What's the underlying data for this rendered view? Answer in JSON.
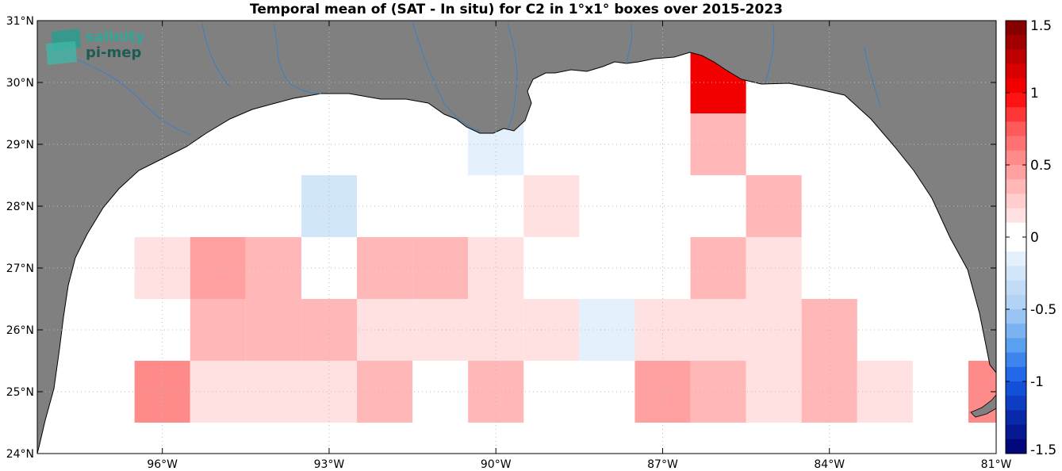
{
  "chart_data": {
    "type": "heatmap",
    "title": "Temporal mean of (SAT - In situ) for C2 in 1°x1° boxes over 2015-2023",
    "x_range": [
      -98.25,
      -81
    ],
    "y_range": [
      24,
      31
    ],
    "x_ticks": [
      {
        "value": -96,
        "label": "96°W"
      },
      {
        "value": -93,
        "label": "93°W"
      },
      {
        "value": -90,
        "label": "90°W"
      },
      {
        "value": -87,
        "label": "87°W"
      },
      {
        "value": -84,
        "label": "84°W"
      },
      {
        "value": -81,
        "label": "81°W"
      }
    ],
    "y_ticks": [
      {
        "value": 24,
        "label": "24°N"
      },
      {
        "value": 25,
        "label": "25°N"
      },
      {
        "value": 26,
        "label": "26°N"
      },
      {
        "value": 27,
        "label": "27°N"
      },
      {
        "value": 28,
        "label": "28°N"
      },
      {
        "value": 29,
        "label": "29°N"
      },
      {
        "value": 30,
        "label": "30°N"
      },
      {
        "value": 31,
        "label": "31°N"
      }
    ],
    "grid": true,
    "colorbar": {
      "min": -1.5,
      "max": 1.5,
      "step": 0.1,
      "ticks": [
        {
          "value": 1.5,
          "label": "1.5"
        },
        {
          "value": 1,
          "label": "1"
        },
        {
          "value": 0.5,
          "label": "0.5"
        },
        {
          "value": 0,
          "label": "0"
        },
        {
          "value": -0.5,
          "label": "-0.5"
        },
        {
          "value": -1,
          "label": "-1"
        },
        {
          "value": -1.5,
          "label": "-1.5"
        }
      ]
    },
    "cells": [
      {
        "lon": -96,
        "lat": 25,
        "value": 0.55
      },
      {
        "lon": -95,
        "lat": 25,
        "value": 0.15
      },
      {
        "lon": -94,
        "lat": 25,
        "value": 0.15
      },
      {
        "lon": -93,
        "lat": 25,
        "value": 0.15
      },
      {
        "lon": -92,
        "lat": 25,
        "value": 0.35
      },
      {
        "lon": -90,
        "lat": 25,
        "value": 0.35
      },
      {
        "lon": -87,
        "lat": 25,
        "value": 0.45
      },
      {
        "lon": -86,
        "lat": 25,
        "value": 0.35
      },
      {
        "lon": -85,
        "lat": 25,
        "value": 0.15
      },
      {
        "lon": -84,
        "lat": 25,
        "value": 0.35
      },
      {
        "lon": -83,
        "lat": 25,
        "value": 0.15
      },
      {
        "lon": -81,
        "lat": 25,
        "value": 0.55
      },
      {
        "lon": -95,
        "lat": 26,
        "value": 0.35
      },
      {
        "lon": -94,
        "lat": 26,
        "value": 0.35
      },
      {
        "lon": -93,
        "lat": 26,
        "value": 0.35
      },
      {
        "lon": -92,
        "lat": 26,
        "value": 0.15
      },
      {
        "lon": -91,
        "lat": 26,
        "value": 0.15
      },
      {
        "lon": -90,
        "lat": 26,
        "value": 0.15
      },
      {
        "lon": -89,
        "lat": 26,
        "value": 0.15
      },
      {
        "lon": -88,
        "lat": 26,
        "value": -0.15
      },
      {
        "lon": -87,
        "lat": 26,
        "value": 0.15
      },
      {
        "lon": -86,
        "lat": 26,
        "value": 0.15
      },
      {
        "lon": -85,
        "lat": 26,
        "value": 0.15
      },
      {
        "lon": -84,
        "lat": 26,
        "value": 0.35
      },
      {
        "lon": -96,
        "lat": 27,
        "value": 0.15
      },
      {
        "lon": -95,
        "lat": 27,
        "value": 0.45
      },
      {
        "lon": -94,
        "lat": 27,
        "value": 0.35
      },
      {
        "lon": -92,
        "lat": 27,
        "value": 0.35
      },
      {
        "lon": -91,
        "lat": 27,
        "value": 0.35
      },
      {
        "lon": -90,
        "lat": 27,
        "value": 0.15
      },
      {
        "lon": -86,
        "lat": 27,
        "value": 0.35
      },
      {
        "lon": -85,
        "lat": 27,
        "value": 0.15
      },
      {
        "lon": -93,
        "lat": 28,
        "value": -0.25
      },
      {
        "lon": -89,
        "lat": 28,
        "value": 0.15
      },
      {
        "lon": -85,
        "lat": 28,
        "value": 0.35
      },
      {
        "lon": -90,
        "lat": 29,
        "value": -0.15
      },
      {
        "lon": -86,
        "lat": 29,
        "value": 0.35
      },
      {
        "lon": -86,
        "lat": 30,
        "value": 1.05
      }
    ],
    "logo": {
      "line1": "salinity",
      "line2": "pi-mep"
    }
  }
}
